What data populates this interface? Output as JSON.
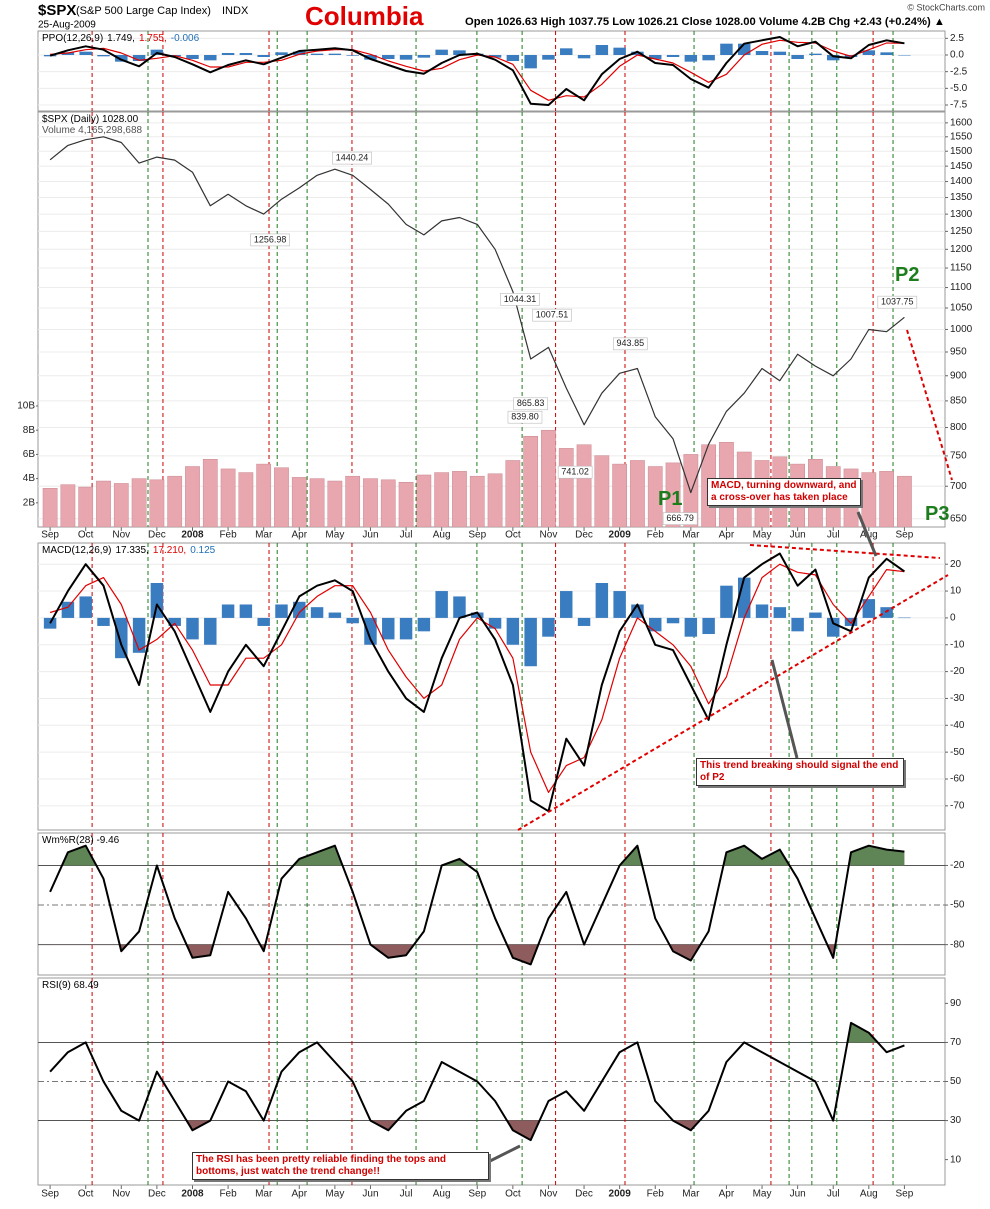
{
  "header": {
    "symbol": "$SPX",
    "name": "(S&P 500 Large Cap Index)",
    "exchange": "INDX",
    "date": "25-Aug-2009",
    "title": "Columbia",
    "quote": "Open 1026.63  High 1037.75  Low 1026.21  Close 1028.00  Volume 4.2B  Chg +2.43 (+0.24%) ▲",
    "credit": "© StockCharts.com"
  },
  "annotations": {
    "macd_note": "MACD, turning downward, and a cross-over has taken place",
    "trend_note": "This trend breaking should signal the end of P2",
    "rsi_note": "The RSI has been pretty reliable finding the tops and bottoms, just watch the trend change!!",
    "p1": "P1",
    "p2": "P2",
    "p3": "P3"
  },
  "event_lines": [
    {
      "x": 1.18,
      "color": "#cc0000"
    },
    {
      "x": 2.75,
      "color": "#1d7d1d"
    },
    {
      "x": 3.17,
      "color": "#cc0000"
    },
    {
      "x": 6.15,
      "color": "#cc0000"
    },
    {
      "x": 6.38,
      "color": "#1d7d1d"
    },
    {
      "x": 7.22,
      "color": "#1d7d1d"
    },
    {
      "x": 8.48,
      "color": "#cc0000"
    },
    {
      "x": 10.28,
      "color": "#1d7d1d"
    },
    {
      "x": 11.99,
      "color": "#1d7d1d"
    },
    {
      "x": 13.26,
      "color": "#1d7d1d"
    },
    {
      "x": 14.2,
      "color": "#cc0000"
    },
    {
      "x": 16.15,
      "color": "#cc0000"
    },
    {
      "x": 18.09,
      "color": "#1d7d1d"
    },
    {
      "x": 20.25,
      "color": "#cc0000"
    },
    {
      "x": 20.76,
      "color": "#1d7d1d"
    },
    {
      "x": 21.4,
      "color": "#1d7d1d"
    },
    {
      "x": 22.1,
      "color": "#1d7d1d"
    },
    {
      "x": 23.12,
      "color": "#cc0000"
    },
    {
      "x": 23.68,
      "color": "#1d7d1d"
    }
  ],
  "chart_data": {
    "type": "stock",
    "x": [
      0,
      0.5,
      1,
      1.5,
      2,
      2.5,
      3,
      3.5,
      4,
      4.5,
      5,
      5.5,
      6,
      6.5,
      7,
      7.5,
      8,
      8.5,
      9,
      9.5,
      10,
      10.5,
      11,
      11.5,
      12,
      12.5,
      13,
      13.5,
      14,
      14.5,
      15,
      15.5,
      16,
      16.5,
      17,
      17.5,
      18,
      18.5,
      19,
      19.5,
      20,
      20.5,
      21,
      21.5,
      22,
      22.5,
      23,
      23.5,
      24
    ],
    "xlim": [
      -0.34,
      25.14
    ],
    "xticks": [
      {
        "value": 0,
        "label": "Sep"
      },
      {
        "value": 1,
        "label": "Oct"
      },
      {
        "value": 2,
        "label": "Nov"
      },
      {
        "value": 3,
        "label": "Dec"
      },
      {
        "value": 4,
        "label": "2008"
      },
      {
        "value": 5,
        "label": "Feb"
      },
      {
        "value": 6,
        "label": "Mar"
      },
      {
        "value": 7,
        "label": "Apr"
      },
      {
        "value": 8,
        "label": "May"
      },
      {
        "value": 9,
        "label": "Jun"
      },
      {
        "value": 10,
        "label": "Jul"
      },
      {
        "value": 11,
        "label": "Aug"
      },
      {
        "value": 12,
        "label": "Sep"
      },
      {
        "value": 13,
        "label": "Oct"
      },
      {
        "value": 14,
        "label": "Nov"
      },
      {
        "value": 15,
        "label": "Dec"
      },
      {
        "value": 16,
        "label": "2009"
      },
      {
        "value": 17,
        "label": "Feb"
      },
      {
        "value": 18,
        "label": "Mar"
      },
      {
        "value": 19,
        "label": "Apr"
      },
      {
        "value": 20,
        "label": "May"
      },
      {
        "value": 21,
        "label": "Jun"
      },
      {
        "value": 22,
        "label": "Jul"
      },
      {
        "value": 23,
        "label": "Aug"
      },
      {
        "value": 24,
        "label": "Sep"
      }
    ],
    "panels": [
      {
        "type": "line",
        "legend": [
          [
            {
              "text": "PPO(12,26,9)",
              "color": "#000000"
            },
            {
              "text": "1.749,",
              "color": "#000000"
            },
            {
              "text": "1.755,",
              "color": "#dd0000"
            },
            {
              "text": "-0.006",
              "color": "#1f6fb5"
            }
          ]
        ],
        "ylim": [
          -8.4,
          3.6
        ],
        "yticks": [
          2.5,
          {
            "value": 0,
            "label": "0.0"
          },
          -2.5,
          {
            "value": -5,
            "label": "-5.0"
          },
          {
            "value": -7.5,
            "label": "-7.5"
          }
        ],
        "grid": true,
        "series": [
          {
            "type": "bar",
            "color": "#3a7cc0",
            "values": [
              -0.2,
              0.4,
              0.5,
              -0.2,
              -1.0,
              -0.9,
              0.8,
              -0.2,
              -0.6,
              -0.8,
              0.3,
              0.3,
              -0.3,
              0.4,
              0.5,
              0.2,
              0.2,
              -0.1,
              -0.7,
              -0.6,
              -0.7,
              -0.4,
              0.8,
              0.7,
              0.2,
              -0.4,
              -0.9,
              -2.0,
              -0.7,
              1.0,
              -0.5,
              1.5,
              1.1,
              0.5,
              -0.6,
              -0.3,
              -1.0,
              -0.8,
              1.7,
              1.7,
              0.6,
              0.5,
              -0.6,
              0.2,
              -0.8,
              -0.3,
              0.7,
              0.4,
              -0.006
            ]
          },
          {
            "type": "line",
            "color": "#e00000",
            "values": [
              0.1,
              0.3,
              0.8,
              1.0,
              0.3,
              -0.8,
              -0.5,
              -0.1,
              -0.8,
              -1.8,
              -1.8,
              -1.1,
              -1.1,
              -0.8,
              0.1,
              0.6,
              0.8,
              0.8,
              0.1,
              -0.9,
              -1.7,
              -2.4,
              -2.0,
              -0.7,
              0,
              -0.3,
              -1.4,
              -5.3,
              -6.8,
              -6.1,
              -6.3,
              -4.4,
              -1.7,
              0,
              -0.6,
              -1.2,
              -2.6,
              -4.1,
              -2.9,
              0,
              1.6,
              2.2,
              1.9,
              1.8,
              0.6,
              -0.2,
              0.8,
              1.8,
              1.755
            ]
          },
          {
            "type": "line",
            "color": "#000000",
            "values": [
              -0.1,
              0.7,
              1.3,
              0.8,
              -0.7,
              -1.7,
              0.3,
              -0.3,
              -1.4,
              -2.6,
              -1.5,
              -0.8,
              -1.4,
              -0.4,
              0.6,
              0.8,
              1.0,
              0.7,
              -0.6,
              -1.5,
              -2.4,
              -2.8,
              -1.2,
              0,
              0.2,
              -0.7,
              -2.3,
              -7.3,
              -7.5,
              -5.1,
              -6.8,
              -2.9,
              -0.6,
              0.5,
              -1.2,
              -1.5,
              -3.6,
              -4.9,
              -1.2,
              1.7,
              2.2,
              2.7,
              1.3,
              2.0,
              -0.2,
              -0.5,
              1.5,
              2.2,
              1.749
            ]
          }
        ]
      },
      {
        "type": "line",
        "log_scale": true,
        "legend": [
          [
            {
              "text": "$SPX (Daily) 1028.00",
              "color": "#000000"
            }
          ],
          [
            {
              "text": "Volume 4,165,298,688",
              "color": "#555555"
            }
          ]
        ],
        "ylim": [
          638,
          1640
        ],
        "yticks": [
          650,
          700,
          750,
          800,
          850,
          900,
          950,
          1000,
          1050,
          1100,
          1150,
          1200,
          1250,
          1300,
          1350,
          1400,
          1450,
          1500,
          1550,
          1600
        ],
        "grid": true,
        "y2lim": [
          0,
          34.3
        ],
        "y2ticks": [
          {
            "value": 2,
            "label": "2B"
          },
          {
            "value": 4,
            "label": "4B"
          },
          {
            "value": 6,
            "label": "6B"
          },
          {
            "value": 8,
            "label": "8B"
          },
          {
            "value": 10,
            "label": "10B"
          }
        ],
        "series": [
          {
            "type": "bar",
            "axis": "y2",
            "color": "#e8a7ae",
            "values": [
              3.2,
              3.5,
              3.3,
              3.8,
              3.6,
              4.0,
              3.9,
              4.2,
              5.0,
              5.6,
              4.8,
              4.5,
              5.2,
              4.9,
              4.1,
              4.0,
              3.8,
              4.2,
              4.0,
              3.9,
              3.7,
              4.3,
              4.5,
              4.6,
              4.2,
              4.4,
              5.5,
              7.5,
              8.0,
              6.5,
              6.8,
              5.9,
              5.2,
              5.5,
              5.0,
              5.3,
              6.0,
              6.8,
              7.0,
              6.2,
              5.5,
              5.8,
              5.2,
              5.6,
              5.0,
              4.8,
              4.5,
              4.6,
              4.2
            ]
          },
          {
            "type": "line",
            "color": "#333333",
            "values": [
              1471,
              1520,
              1540,
              1550,
              1530,
              1460,
              1480,
              1470,
              1430,
              1325,
              1360,
              1325,
              1300,
              1345,
              1380,
              1420,
              1440,
              1420,
              1375,
              1330,
              1270,
              1240,
              1280,
              1290,
              1270,
              1200,
              1090,
              935,
              960,
              875,
              805,
              865,
              905,
              915,
              820,
              780,
              690,
              770,
              830,
              865,
              915,
              890,
              945,
              920,
              900,
              935,
              1000,
              995,
              1028
            ]
          }
        ],
        "extremes": {
          "x": [
            8.48,
            6.18,
            13.2,
            14.1,
            16.3,
            13.5,
            13.34,
            14.75,
            17.7,
            23.8
          ],
          "values": [
            1440.24,
            1256.98,
            1044.31,
            1007.51,
            943.85,
            865.83,
            839.8,
            741.02,
            666.79,
            1037.75
          ],
          "value_labels": [
            "1440.24",
            "1256.98",
            "1044.31",
            "1007.51",
            "943.85",
            "865.83",
            "839.80",
            "741.02",
            "666.79",
            "1037.75"
          ]
        }
      },
      {
        "type": "line",
        "legend": [
          [
            {
              "text": "MACD(12,26,9)",
              "color": "#000000"
            },
            {
              "text": "17.335,",
              "color": "#000000"
            },
            {
              "text": "17.210,",
              "color": "#dd0000"
            },
            {
              "text": "0.125",
              "color": "#1f6fb5"
            }
          ]
        ],
        "ylim": [
          -79,
          27.9
        ],
        "yticks": [
          20,
          10,
          0,
          -10,
          -20,
          -30,
          -40,
          -50,
          -60,
          -70
        ],
        "grid": true,
        "series": [
          {
            "type": "bar",
            "color": "#3a7cc0",
            "values": [
              -4,
              6,
              8,
              -3,
              -15,
              -13,
              13,
              -3,
              -8,
              -10,
              5,
              5,
              -3,
              5,
              6,
              4,
              2,
              -2,
              -10,
              -8,
              -8,
              -5,
              10,
              8,
              2,
              -4,
              -10,
              -18,
              -7,
              10,
              -3,
              13,
              10,
              5,
              -5,
              -2,
              -7,
              -6,
              12,
              15,
              5,
              4,
              -5,
              2,
              -7,
              -3,
              7,
              4,
              0.125
            ]
          },
          {
            "type": "line",
            "color": "#e00000",
            "values": [
              2,
              4,
              12,
              15,
              5,
              -12,
              -8,
              -2,
              -12,
              -25,
              -25,
              -15,
              -15,
              -10,
              2,
              8,
              12,
              12,
              2,
              -12,
              -22,
              -30,
              -25,
              -8,
              0,
              -4,
              -15,
              -50,
              -65,
              -55,
              -52,
              -38,
              -15,
              0,
              -5,
              -10,
              -18,
              -32,
              -22,
              0,
              15,
              20,
              17,
              16,
              5,
              -2,
              8,
              18,
              17.21
            ]
          },
          {
            "type": "line",
            "color": "#000000",
            "values": [
              -2,
              10,
              20,
              12,
              -10,
              -25,
              5,
              -5,
              -20,
              -35,
              -20,
              -10,
              -18,
              -5,
              8,
              12,
              14,
              10,
              -8,
              -20,
              -30,
              -35,
              -15,
              0,
              2,
              -8,
              -25,
              -68,
              -72,
              -45,
              -55,
              -25,
              -5,
              5,
              -10,
              -12,
              -25,
              -38,
              -10,
              15,
              20,
              24,
              12,
              18,
              -2,
              -5,
              15,
              22,
              17.335
            ]
          }
        ]
      },
      {
        "type": "line",
        "legend": [
          [
            {
              "text": "Wm%R(28) -9.46",
              "color": "#000000"
            }
          ]
        ],
        "ylim": [
          -103,
          4.6
        ],
        "yticks": [
          -20,
          -50,
          -80
        ],
        "reference_lines": [
          -20,
          -50,
          -80
        ],
        "overbought": -20,
        "oversold": -80,
        "fill_colors": [
          "#5f8456",
          "#8e5c5c"
        ],
        "series": [
          {
            "type": "line",
            "color": "#000000",
            "values": [
              -40,
              -10,
              -5,
              -30,
              -85,
              -70,
              -20,
              -60,
              -90,
              -88,
              -40,
              -60,
              -85,
              -30,
              -15,
              -10,
              -5,
              -40,
              -80,
              -90,
              -88,
              -70,
              -20,
              -15,
              -25,
              -60,
              -90,
              -95,
              -60,
              -40,
              -80,
              -50,
              -20,
              -5,
              -60,
              -85,
              -92,
              -70,
              -10,
              -5,
              -15,
              -8,
              -30,
              -60,
              -90,
              -10,
              -5,
              -8,
              -9.46
            ]
          }
        ]
      },
      {
        "type": "line",
        "legend": [
          [
            {
              "text": "RSI(9) 68.49",
              "color": "#000000"
            }
          ]
        ],
        "ylim": [
          -3,
          103
        ],
        "yticks": [
          90,
          70,
          50,
          30,
          10
        ],
        "reference_lines": [
          70,
          50,
          30
        ],
        "overbought": 70,
        "oversold": 30,
        "fill_colors": [
          "#5f8456",
          "#8e5c5c"
        ],
        "series": [
          {
            "type": "line",
            "color": "#000000",
            "values": [
              55,
              65,
              70,
              50,
              35,
              30,
              55,
              40,
              25,
              30,
              50,
              45,
              30,
              55,
              65,
              70,
              60,
              50,
              30,
              25,
              35,
              40,
              60,
              55,
              50,
              40,
              25,
              20,
              40,
              45,
              35,
              50,
              65,
              70,
              40,
              30,
              25,
              35,
              60,
              70,
              65,
              60,
              55,
              50,
              30,
              80,
              75,
              65,
              68.49
            ]
          }
        ]
      }
    ]
  }
}
